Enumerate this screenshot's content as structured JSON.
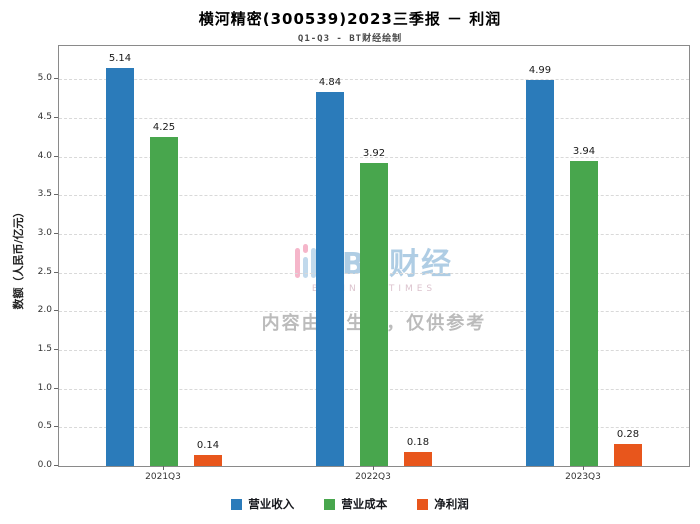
{
  "title": "横河精密(300539)2023三季报 － 利润",
  "subtitle": "Q1-Q3 - BT财经绘制",
  "watermark": {
    "brand": "BT财经",
    "brand_sub": "BUSINESSTIMES",
    "disclaimer": "内容由AI生成，仅供参考"
  },
  "chart_data": {
    "type": "bar",
    "title": "横河精密(300539)2023三季报 － 利润",
    "subtitle": "Q1-Q3 - BT财经绘制",
    "categories": [
      "2021Q3",
      "2022Q3",
      "2023Q3"
    ],
    "series": [
      {
        "name": "营业收入",
        "color": "#2B7BBA",
        "values": [
          5.14,
          4.84,
          4.99
        ]
      },
      {
        "name": "营业成本",
        "color": "#48A64D",
        "values": [
          4.25,
          3.92,
          3.94
        ]
      },
      {
        "name": "净利润",
        "color": "#E8561C",
        "values": [
          0.14,
          0.18,
          0.28
        ]
      }
    ],
    "xlabel": "",
    "ylabel": "数额（人民币/亿元）",
    "ylim": [
      0,
      5.43
    ],
    "yticks": [
      0.0,
      0.5,
      1.0,
      1.5,
      2.0,
      2.5,
      3.0,
      3.5,
      4.0,
      4.5,
      5.0
    ],
    "grid": true,
    "grid_style": "dashed",
    "legend_position": "bottom"
  }
}
